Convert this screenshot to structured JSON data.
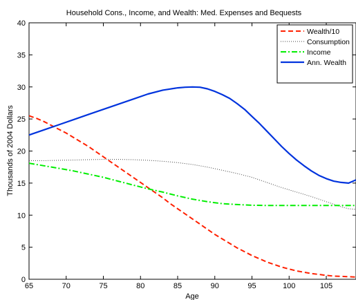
{
  "chart_data": {
    "type": "line",
    "title": "Household Cons., Income, and Wealth: Med. Expenses and Bequests",
    "xlabel": "Age",
    "ylabel": "Thousands of 2004 Dollars",
    "xlim": [
      65,
      109
    ],
    "ylim": [
      0,
      40
    ],
    "xticks": [
      65,
      70,
      75,
      80,
      85,
      90,
      95,
      100,
      105
    ],
    "yticks": [
      0,
      5,
      10,
      15,
      20,
      25,
      30,
      35,
      40
    ],
    "grid": false,
    "legend_position": "top-right",
    "series": [
      {
        "name": "Wealth/10",
        "color": "#ff2000",
        "style": "dashed",
        "x": [
          65,
          66,
          67,
          68,
          69,
          70,
          71,
          72,
          73,
          74,
          75,
          76,
          77,
          78,
          79,
          80,
          81,
          82,
          83,
          84,
          85,
          86,
          87,
          88,
          89,
          90,
          91,
          92,
          93,
          94,
          95,
          96,
          97,
          98,
          99,
          100,
          101,
          102,
          103,
          104,
          105,
          106,
          107,
          108,
          109
        ],
        "y": [
          25.5,
          25.1,
          24.6,
          24.0,
          23.4,
          22.8,
          22.1,
          21.4,
          20.7,
          19.9,
          19.1,
          18.3,
          17.5,
          16.7,
          15.9,
          15.1,
          14.3,
          13.5,
          12.7,
          11.8,
          11.0,
          10.2,
          9.4,
          8.6,
          7.8,
          7.0,
          6.3,
          5.6,
          4.9,
          4.3,
          3.7,
          3.2,
          2.7,
          2.3,
          1.9,
          1.6,
          1.3,
          1.1,
          0.9,
          0.75,
          0.6,
          0.5,
          0.45,
          0.4,
          0.35
        ]
      },
      {
        "name": "Consumption",
        "color": "#404040",
        "style": "dotted",
        "x": [
          65,
          67,
          69,
          71,
          73,
          75,
          77,
          79,
          81,
          83,
          85,
          87,
          89,
          91,
          93,
          95,
          97,
          99,
          101,
          103,
          105,
          106,
          107,
          108,
          109
        ],
        "y": [
          18.5,
          18.5,
          18.55,
          18.6,
          18.65,
          18.7,
          18.7,
          18.65,
          18.55,
          18.4,
          18.2,
          17.9,
          17.5,
          17.0,
          16.5,
          15.9,
          15.1,
          14.3,
          13.6,
          12.9,
          12.1,
          11.7,
          11.3,
          11.0,
          10.9
        ]
      },
      {
        "name": "Income",
        "color": "#00ee00",
        "style": "dashdot",
        "x": [
          65,
          67,
          69,
          71,
          73,
          75,
          77,
          79,
          81,
          83,
          85,
          87,
          89,
          91,
          93,
          95,
          97,
          99,
          101,
          103,
          105,
          107,
          109
        ],
        "y": [
          18.1,
          17.7,
          17.3,
          16.9,
          16.4,
          15.9,
          15.3,
          14.7,
          14.1,
          13.6,
          13.0,
          12.5,
          12.1,
          11.8,
          11.65,
          11.55,
          11.5,
          11.5,
          11.5,
          11.5,
          11.5,
          11.5,
          11.5
        ]
      },
      {
        "name": "Ann. Wealth",
        "color": "#0033dd",
        "style": "solid",
        "x": [
          65,
          67,
          69,
          71,
          73,
          75,
          77,
          79,
          81,
          83,
          85,
          86,
          87,
          88,
          89,
          90,
          91,
          92,
          93,
          94,
          95,
          96,
          97,
          98,
          99,
          100,
          101,
          102,
          103,
          104,
          105,
          106,
          107,
          108,
          109
        ],
        "y": [
          22.5,
          23.3,
          24.1,
          24.9,
          25.7,
          26.5,
          27.3,
          28.1,
          28.9,
          29.5,
          29.85,
          29.95,
          30.0,
          29.95,
          29.7,
          29.3,
          28.8,
          28.2,
          27.4,
          26.5,
          25.4,
          24.3,
          23.1,
          21.9,
          20.7,
          19.6,
          18.6,
          17.7,
          16.9,
          16.2,
          15.7,
          15.3,
          15.1,
          15.0,
          15.5
        ]
      }
    ]
  }
}
